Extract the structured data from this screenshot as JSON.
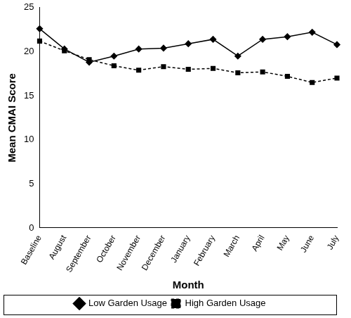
{
  "chart_data": {
    "type": "line",
    "x_label": "Month",
    "y_label": "Mean CMAI Score",
    "categories": [
      "Baseline",
      "August",
      "September",
      "October",
      "November",
      "December",
      "January",
      "February",
      "March",
      "April",
      "May",
      "June",
      "July"
    ],
    "series": [
      {
        "name": "Low Garden Usage",
        "color": "#000000",
        "marker": "diamond",
        "line_style": "solid",
        "values": [
          22.6,
          20.3,
          18.8,
          19.5,
          20.3,
          20.4,
          20.9,
          21.4,
          19.5,
          21.4,
          21.7,
          22.2,
          20.8
        ]
      },
      {
        "name": "High Garden Usage",
        "color": "#000000",
        "marker": "square",
        "line_style": "dashed",
        "values": [
          21.2,
          20.1,
          19.1,
          18.4,
          17.9,
          18.3,
          18.0,
          18.1,
          17.6,
          17.7,
          17.2,
          16.5,
          17.0
        ]
      }
    ],
    "ylim": [
      0,
      25
    ],
    "yticks": [
      0,
      5,
      10,
      15,
      20,
      25
    ],
    "grid": false,
    "legend": "bottom"
  }
}
